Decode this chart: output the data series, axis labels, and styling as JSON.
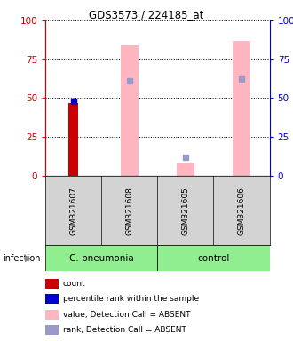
{
  "title": "GDS3573 / 224185_at",
  "samples": [
    "GSM321607",
    "GSM321608",
    "GSM321605",
    "GSM321606"
  ],
  "groups": [
    {
      "label": "C. pneumonia",
      "samples": [
        0,
        1
      ],
      "color": "#90EE90"
    },
    {
      "label": "control",
      "samples": [
        2,
        3
      ],
      "color": "#90EE90"
    }
  ],
  "red_bars": [
    47,
    null,
    null,
    null
  ],
  "blue_squares": [
    48,
    null,
    null,
    null
  ],
  "pink_bars": [
    null,
    84,
    8,
    87
  ],
  "lavender_squares": [
    null,
    61,
    12,
    62
  ],
  "ylim": [
    0,
    100
  ],
  "yticks": [
    0,
    25,
    50,
    75,
    100
  ],
  "left_axis_color": "#cc0000",
  "right_axis_color": "#0000cc",
  "legend_items": [
    {
      "color": "#cc0000",
      "label": "count"
    },
    {
      "color": "#0000cc",
      "label": "percentile rank within the sample"
    },
    {
      "color": "#FFB6C1",
      "label": "value, Detection Call = ABSENT"
    },
    {
      "color": "#9999CC",
      "label": "rank, Detection Call = ABSENT"
    }
  ],
  "infection_label": "infection",
  "group_bg_color": "#d3d3d3",
  "plot_bg_color": "#ffffff"
}
